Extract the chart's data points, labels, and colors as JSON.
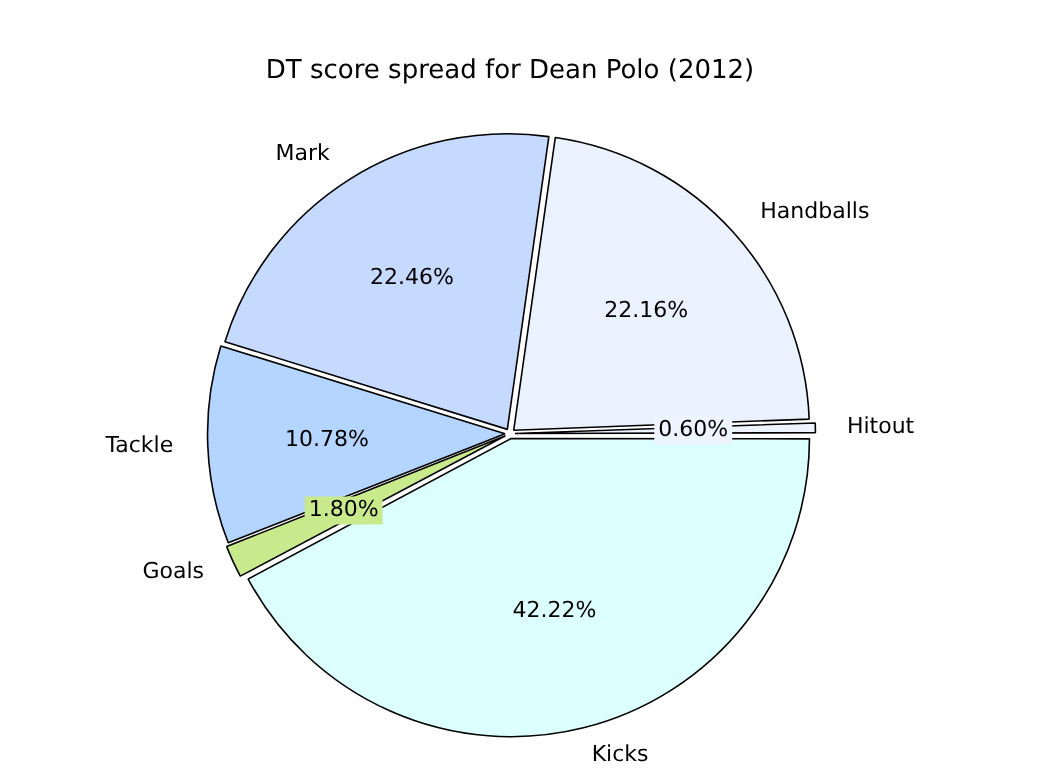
{
  "chart_data": {
    "type": "pie",
    "title": "DT score spread for Dean Polo (2012)",
    "categories": [
      "Hitout",
      "Handballs",
      "Mark",
      "Tackle",
      "Goals",
      "Kicks"
    ],
    "values": [
      0.6,
      22.16,
      22.46,
      10.78,
      1.8,
      42.22
    ],
    "colors": [
      "#eef4ff",
      "#eaf2ff",
      "#c6d9ff",
      "#b4d5ff",
      "#c8ea8c",
      "#dcffff"
    ],
    "value_labels": [
      "0.60%",
      "22.16%",
      "22.46%",
      "10.78%",
      "1.80%",
      "42.22%"
    ],
    "legend": false
  }
}
